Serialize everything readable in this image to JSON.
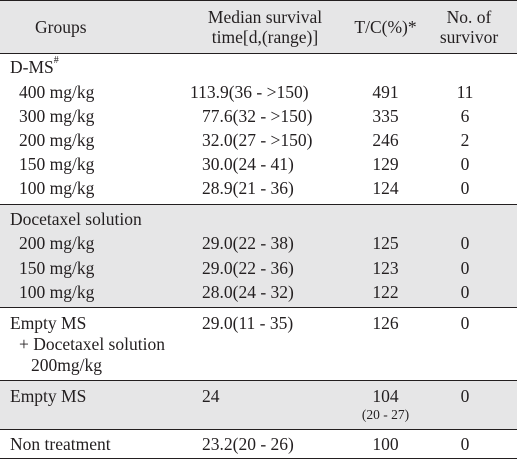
{
  "header": {
    "groups": "Groups",
    "median_line1": "Median survival",
    "median_line2": "time[d,(range)]",
    "tc": "T/C(%)*",
    "survivor_line1": "No. of",
    "survivor_line2": "survivor"
  },
  "dms": {
    "title": "D-MS",
    "mark": "#",
    "rows": [
      {
        "dose": "400 mg/kg",
        "median": "113.9(36 - >150)",
        "tc": "491",
        "surv": "11"
      },
      {
        "dose": "300 mg/kg",
        "median": "77.6(32 - >150)",
        "tc": "335",
        "surv": "6"
      },
      {
        "dose": "200 mg/kg",
        "median": "32.0(27 - >150)",
        "tc": "246",
        "surv": "2"
      },
      {
        "dose": "150 mg/kg",
        "median": "30.0(24 - 41)",
        "tc": "129",
        "surv": "0"
      },
      {
        "dose": "100 mg/kg",
        "median": "28.9(21 - 36)",
        "tc": "124",
        "surv": "0"
      }
    ]
  },
  "docetaxel": {
    "title": "Docetaxel solution",
    "rows": [
      {
        "dose": "200 mg/kg",
        "median": "29.0(22 - 38)",
        "tc": "125",
        "surv": "0"
      },
      {
        "dose": "150 mg/kg",
        "median": "29.0(22 - 36)",
        "tc": "123",
        "surv": "0"
      },
      {
        "dose": "100 mg/kg",
        "median": "28.0(24 - 32)",
        "tc": "122",
        "surv": "0"
      }
    ]
  },
  "empty_combo": {
    "line1": "Empty MS",
    "line2": "+ Docetaxel solution",
    "line3": "200mg/kg",
    "median": "29.0(11 - 35)",
    "tc": "126",
    "surv": "0"
  },
  "empty_ms": {
    "label": "Empty MS",
    "median": "24",
    "tc": "104",
    "tc_range": "(20 - 27)",
    "surv": "0"
  },
  "non_treatment": {
    "label": "Non treatment",
    "median": "23.2(20 - 26)",
    "tc": "100",
    "surv": "0"
  }
}
